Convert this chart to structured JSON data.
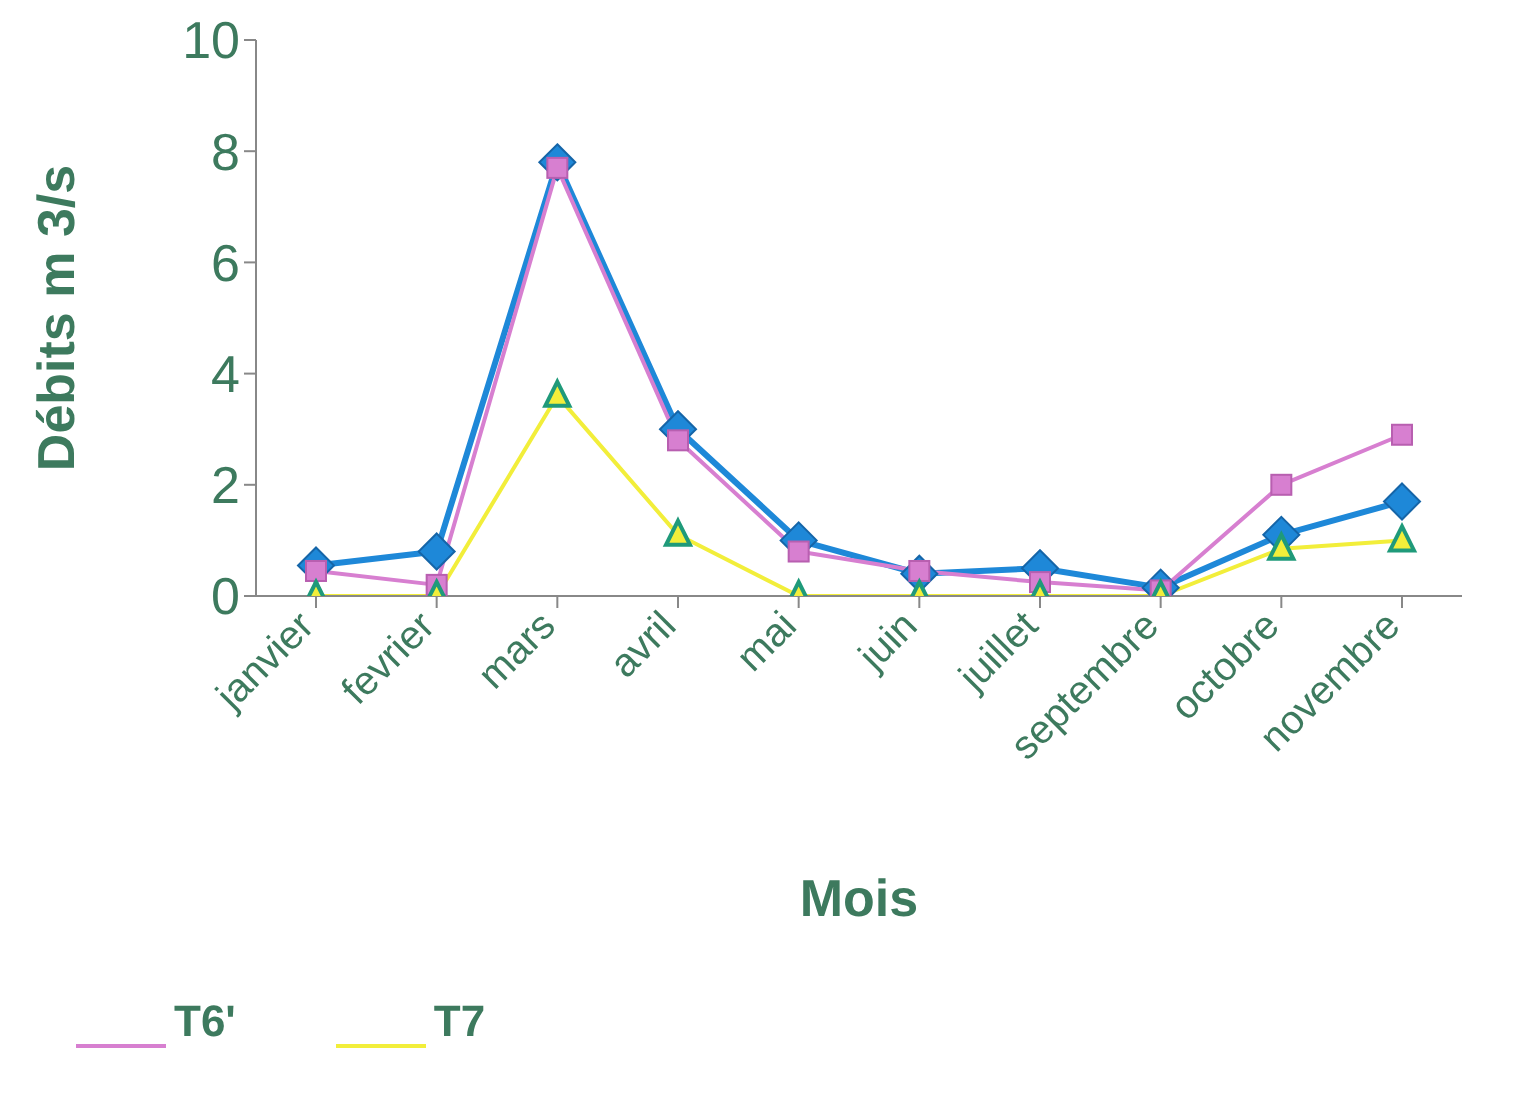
{
  "chart_data": {
    "type": "line",
    "ylabel": "Débits m 3/s",
    "xlabel": "Mois",
    "categories": [
      "janvier",
      "fevrier",
      "mars",
      "avril",
      "mai",
      "juin",
      "juillet",
      "septembre",
      "octobre",
      "novembre"
    ],
    "series": [
      {
        "color": "#1e88d8",
        "marker": "diamond",
        "values": [
          0.55,
          0.8,
          7.8,
          3.0,
          1.0,
          0.4,
          0.5,
          0.15,
          1.1,
          1.7
        ]
      },
      {
        "name": "T6'",
        "color": "#d77fd0",
        "marker": "square",
        "values": [
          0.45,
          0.2,
          7.7,
          2.8,
          0.8,
          0.45,
          0.25,
          0.1,
          2.0,
          2.9
        ]
      },
      {
        "name": "T7",
        "color": "#f2ee3a",
        "marker": "triangle",
        "values": [
          0,
          0,
          3.6,
          1.1,
          0,
          0,
          0,
          0,
          0.85,
          1.0
        ]
      }
    ],
    "ylim": [
      0,
      10
    ],
    "yticks": [
      0,
      2,
      4,
      6,
      8,
      10
    ],
    "grid": false,
    "legend": "bottom left"
  }
}
